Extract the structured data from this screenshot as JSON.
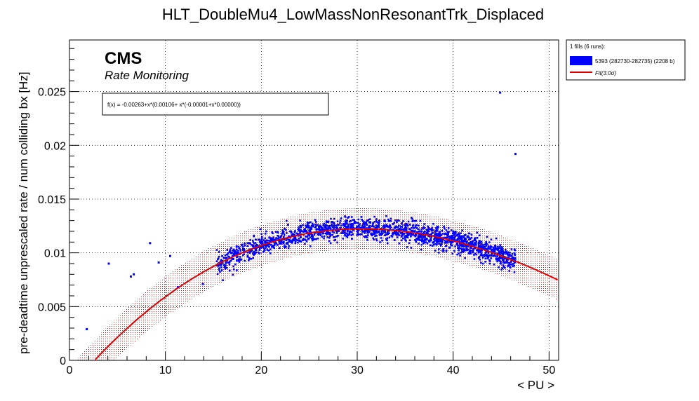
{
  "chart_data": {
    "type": "scatter",
    "title": "HLT_DoubleMu4_LowMassNonResonantTrk_Displaced",
    "xlabel": "< PU >",
    "ylabel": "pre-deadtime unprescaled rate / num colliding bx [Hz]",
    "xlim": [
      0,
      51
    ],
    "ylim": [
      0,
      0.0298
    ],
    "x_ticks": [
      0,
      10,
      20,
      30,
      40,
      50
    ],
    "x_tick_labels": [
      "0",
      "10",
      "20",
      "30",
      "40",
      "50"
    ],
    "y_ticks": [
      0,
      0.005,
      0.01,
      0.015,
      0.02,
      0.025
    ],
    "y_tick_labels": [
      "0",
      "0.005",
      "0.01",
      "0.015",
      "0.02",
      "0.025"
    ],
    "grid": true,
    "legend_position": "top-right outside",
    "branding": {
      "experiment": "CMS",
      "subtitle": "Rate Monitoring"
    },
    "fit": {
      "formula_text": "f(x) = -0.00263+x*(0.00106+ x*(-0.00001+x*0.00000))",
      "coefficients": {
        "a0": -0.00263,
        "a1": 0.00106,
        "a2": -2.15e-05,
        "a3": 9e-08
      },
      "band_sigma": 3.0,
      "band_halfwidth": 0.0019,
      "color": "#e00000",
      "band_color": "#b22222"
    },
    "legend": {
      "header": "1 fills (6 runs):",
      "entries": [
        {
          "label": "5393 (282730-282735) (2208 b)",
          "color": "#0000ff",
          "kind": "box"
        },
        {
          "label": "Fit(3.0σ)",
          "color": "#e00000",
          "kind": "line"
        }
      ]
    },
    "series": [
      {
        "name": "5393 (282730-282735) (2208 b)",
        "color": "#0000ff",
        "main_cloud": {
          "x_range": [
            15.3,
            46.5
          ],
          "n_points": 1800,
          "scatter": 0.0005
        },
        "outliers": [
          {
            "x": 1.8,
            "y": 0.0029
          },
          {
            "x": 4.1,
            "y": 0.009
          },
          {
            "x": 6.4,
            "y": 0.0078
          },
          {
            "x": 6.7,
            "y": 0.008
          },
          {
            "x": 8.4,
            "y": 0.0109
          },
          {
            "x": 9.3,
            "y": 0.0091
          },
          {
            "x": 10.5,
            "y": 0.0097
          },
          {
            "x": 11.3,
            "y": 0.0068
          },
          {
            "x": 13.9,
            "y": 0.0071
          },
          {
            "x": 16.2,
            "y": 0.0087
          },
          {
            "x": 30.5,
            "y": 0.0123
          },
          {
            "x": 32.0,
            "y": 0.0116
          },
          {
            "x": 44.9,
            "y": 0.0249
          },
          {
            "x": 46.5,
            "y": 0.0192
          }
        ]
      }
    ]
  }
}
